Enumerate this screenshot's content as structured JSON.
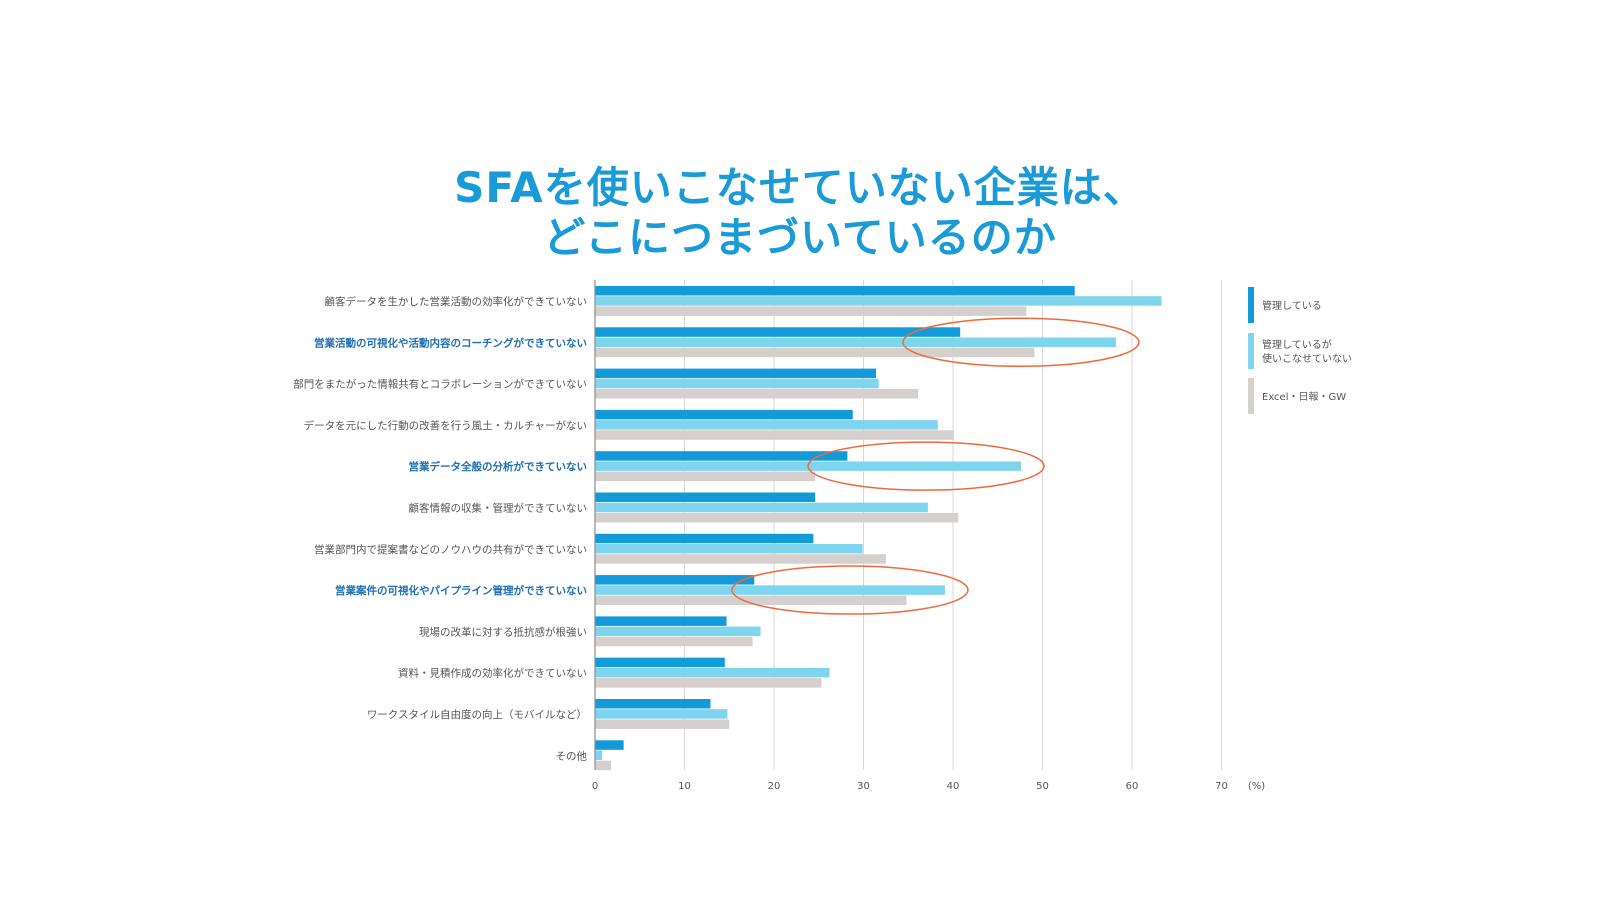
{
  "title_lines": [
    "SFAを使いこなせていない企業は、",
    "どこにつまづいているのか"
  ],
  "colors": {
    "series": [
      "#129bd8",
      "#7fd5ee",
      "#d5d0cd"
    ],
    "highlight_label": "#1f6fb4",
    "ellipse": "#ef6a3a",
    "title": "#1a9ad6"
  },
  "chart_data": {
    "type": "bar",
    "orientation": "horizontal",
    "title": "SFAを使いこなせていない企業は、どこにつまづいているのか",
    "unit_label": "(%)",
    "xlim": [
      0,
      70
    ],
    "ticks": [
      0,
      10,
      20,
      30,
      40,
      50,
      60,
      70
    ],
    "grid": true,
    "legend_position": "right",
    "categories": [
      "顧客データを生かした営業活動の効率化ができていない",
      "営業活動の可視化や活動内容のコーチングができていない",
      "部門をまたがった情報共有とコラボレーションができていない",
      "データを元にした行動の改善を行う風土・カルチャーがない",
      "営業データ全般の分析ができていない",
      "顧客情報の収集・管理ができていない",
      "営業部門内で提案書などのノウハウの共有ができていない",
      "営業案件の可視化やパイプライン管理ができていない",
      "現場の改革に対する抵抗感が根強い",
      "資料・見積作成の効率化ができていない",
      "ワークスタイル自由度の向上（モバイルなど）",
      "その他"
    ],
    "highlighted_categories": [
      1,
      4,
      7
    ],
    "series": [
      {
        "name": "管理している",
        "values": [
          53.6,
          40.8,
          31.4,
          28.8,
          28.2,
          24.6,
          24.4,
          17.8,
          14.7,
          14.5,
          12.9,
          3.2
        ]
      },
      {
        "name": "管理しているが使いこなせていない",
        "values": [
          63.3,
          58.2,
          31.7,
          38.3,
          47.6,
          37.2,
          29.9,
          39.1,
          18.5,
          26.2,
          14.8,
          0.8
        ]
      },
      {
        "name": "Excel・日報・GW",
        "values": [
          48.2,
          49.1,
          36.1,
          40.1,
          24.6,
          40.6,
          32.5,
          34.8,
          17.6,
          25.3,
          15.0,
          1.8
        ]
      }
    ],
    "legend": [
      {
        "lines": [
          "管理している"
        ]
      },
      {
        "lines": [
          "管理しているが",
          "使いこなせていない"
        ]
      },
      {
        "lines": [
          "Excel・日報・GW"
        ]
      }
    ]
  }
}
